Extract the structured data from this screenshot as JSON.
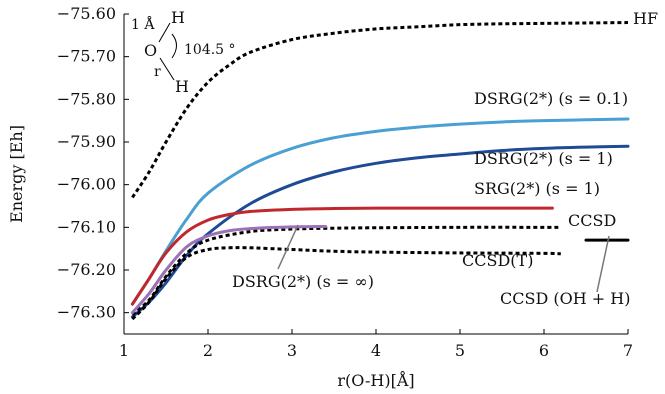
{
  "chart_data": {
    "type": "line",
    "xlabel": "r(O-H)[Å]",
    "ylabel": "Energy [Eh]",
    "xlim": [
      1,
      7
    ],
    "ylim": [
      -76.35,
      -75.6
    ],
    "xticks": [
      "1",
      "2",
      "3",
      "4",
      "5",
      "6",
      "7"
    ],
    "xtick_values": [
      1,
      2,
      3,
      4,
      5,
      6,
      7
    ],
    "yticks": [
      "−75.60",
      "−75.70",
      "−75.80",
      "−75.90",
      "−76.00",
      "−76.10",
      "−76.20",
      "−76.30"
    ],
    "ytick_values": [
      -75.6,
      -75.7,
      -75.8,
      -75.9,
      -76.0,
      -76.1,
      -76.2,
      -76.3
    ],
    "grid": false,
    "inset": {
      "bond_length_label": "1 Å",
      "top_atom": "H",
      "center_atom": "O",
      "angle_label": "104.5 °",
      "bond_variable": "r",
      "bottom_atom": "H"
    },
    "series": [
      {
        "name": "HF",
        "color": "#000000",
        "dash": "dotted",
        "x": [
          1.1,
          1.3,
          1.5,
          1.75,
          2.0,
          2.25,
          2.5,
          3.0,
          3.5,
          4.0,
          4.5,
          5.0,
          5.5,
          6.0,
          6.5,
          7.0
        ],
        "y": [
          -76.03,
          -75.97,
          -75.9,
          -75.82,
          -75.76,
          -75.72,
          -75.69,
          -75.66,
          -75.645,
          -75.635,
          -75.63,
          -75.625,
          -75.623,
          -75.622,
          -75.621,
          -75.62
        ]
      },
      {
        "name": "DSRG(2*) (s = 0.1)",
        "color": "#4a9fd3",
        "dash": "solid",
        "x": [
          1.1,
          1.3,
          1.5,
          1.75,
          2.0,
          2.5,
          3.0,
          3.5,
          4.0,
          4.5,
          5.0,
          5.5,
          6.0,
          6.5,
          7.0
        ],
        "y": [
          -76.28,
          -76.22,
          -76.155,
          -76.08,
          -76.02,
          -75.955,
          -75.915,
          -75.89,
          -75.875,
          -75.865,
          -75.858,
          -75.853,
          -75.85,
          -75.848,
          -75.846
        ]
      },
      {
        "name": "DSRG(2*) (s = 1)",
        "color": "#1f4a96",
        "dash": "solid",
        "x": [
          1.1,
          1.3,
          1.5,
          1.75,
          2.0,
          2.5,
          3.0,
          3.5,
          4.0,
          4.5,
          5.0,
          5.5,
          6.0,
          6.5,
          7.0
        ],
        "y": [
          -76.31,
          -76.275,
          -76.23,
          -76.165,
          -76.115,
          -76.045,
          -76.0,
          -75.97,
          -75.95,
          -75.937,
          -75.928,
          -75.92,
          -75.915,
          -75.912,
          -75.91
        ]
      },
      {
        "name": "SRG(2*) (s = 1)",
        "color": "#c0282d",
        "dash": "solid",
        "x": [
          1.1,
          1.3,
          1.5,
          1.75,
          2.0,
          2.25,
          2.5,
          3.0,
          3.5,
          4.0,
          4.5,
          5.0,
          5.5,
          6.1
        ],
        "y": [
          -76.28,
          -76.22,
          -76.16,
          -76.11,
          -76.083,
          -76.07,
          -76.063,
          -76.058,
          -76.056,
          -76.055,
          -76.055,
          -76.055,
          -76.055,
          -76.055
        ]
      },
      {
        "name": "CCSD",
        "color": "#000000",
        "dash": "dotted",
        "x": [
          1.1,
          1.3,
          1.5,
          1.75,
          2.0,
          2.5,
          3.0,
          3.5,
          4.0,
          5.0,
          6.0,
          6.2
        ],
        "y": [
          -76.305,
          -76.27,
          -76.215,
          -76.16,
          -76.13,
          -76.11,
          -76.104,
          -76.102,
          -76.101,
          -76.1,
          -76.1,
          -76.1
        ]
      },
      {
        "name": "CCSD(T)",
        "color": "#000000",
        "dash": "dotted",
        "x": [
          1.1,
          1.3,
          1.5,
          1.75,
          2.0,
          2.25,
          2.5,
          3.0,
          3.5,
          4.0,
          5.0,
          6.0,
          6.2
        ],
        "y": [
          -76.315,
          -76.275,
          -76.22,
          -76.17,
          -76.152,
          -76.148,
          -76.148,
          -76.152,
          -76.156,
          -76.158,
          -76.16,
          -76.161,
          -76.162
        ]
      },
      {
        "name": "DSRG(2*) (s = ∞)",
        "color": "#9b72b5",
        "dash": "solid",
        "x": [
          1.1,
          1.3,
          1.5,
          1.75,
          2.0,
          2.25,
          2.5,
          3.0,
          3.4
        ],
        "y": [
          -76.3,
          -76.255,
          -76.2,
          -76.145,
          -76.12,
          -76.108,
          -76.103,
          -76.099,
          -76.098
        ]
      },
      {
        "name": "CCSD (OH + H)",
        "color": "#000000",
        "dash": "solid",
        "x": [
          6.5,
          7.0
        ],
        "y": [
          -76.13,
          -76.13
        ]
      }
    ]
  }
}
